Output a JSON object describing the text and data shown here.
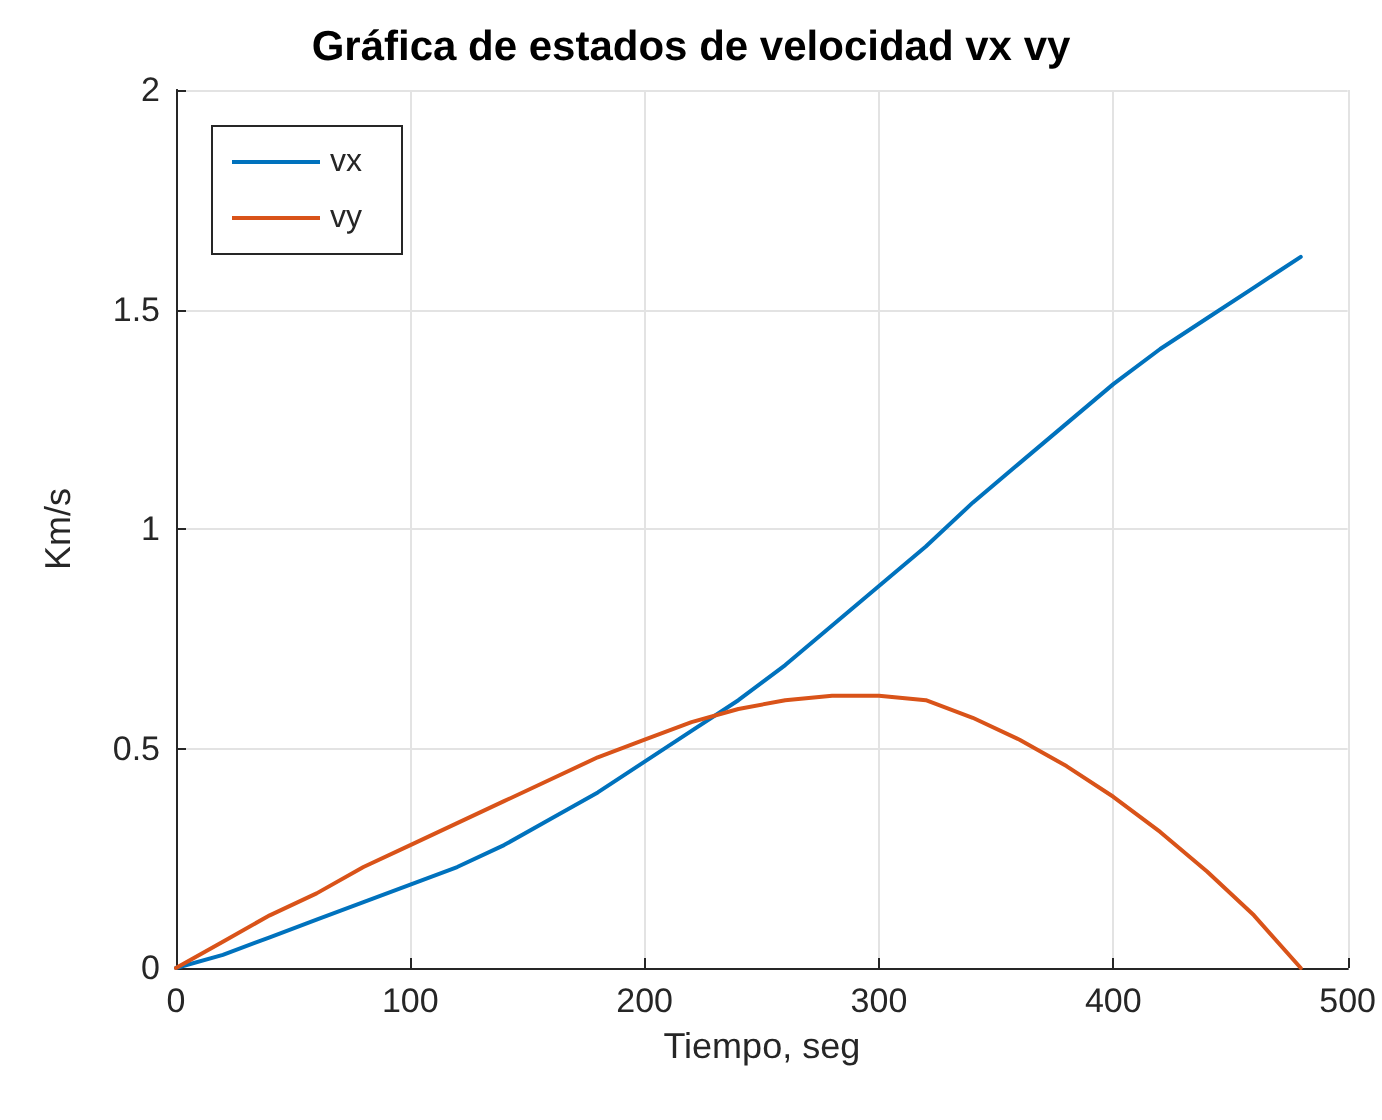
{
  "chart_data": {
    "type": "line",
    "title": "Gráfica de estados de velocidad vx vy",
    "xlabel": "Tiempo, seg",
    "ylabel": "Km/s",
    "x": [
      0,
      20,
      40,
      60,
      80,
      100,
      120,
      140,
      160,
      180,
      200,
      220,
      240,
      260,
      280,
      300,
      320,
      340,
      360,
      380,
      400,
      420,
      440,
      460,
      480
    ],
    "series": [
      {
        "name": "vx",
        "color": "#0072bd",
        "values": [
          0,
          0.03,
          0.07,
          0.11,
          0.15,
          0.19,
          0.23,
          0.28,
          0.34,
          0.4,
          0.47,
          0.54,
          0.61,
          0.69,
          0.78,
          0.87,
          0.96,
          1.06,
          1.15,
          1.24,
          1.33,
          1.41,
          1.48,
          1.55,
          1.62
        ]
      },
      {
        "name": "vy",
        "color": "#d95319",
        "values": [
          0,
          0.06,
          0.12,
          0.17,
          0.23,
          0.28,
          0.33,
          0.38,
          0.43,
          0.48,
          0.52,
          0.56,
          0.59,
          0.61,
          0.62,
          0.62,
          0.61,
          0.57,
          0.52,
          0.46,
          0.39,
          0.31,
          0.22,
          0.12,
          0
        ]
      }
    ],
    "xlim": [
      0,
      500
    ],
    "xticks": [
      0,
      100,
      200,
      300,
      400,
      500
    ],
    "ylim": [
      0,
      2
    ],
    "yticks": [
      0,
      0.5,
      1,
      1.5,
      2
    ],
    "grid": true,
    "legend": "top left",
    "marker": "none",
    "line_style": "solid"
  }
}
